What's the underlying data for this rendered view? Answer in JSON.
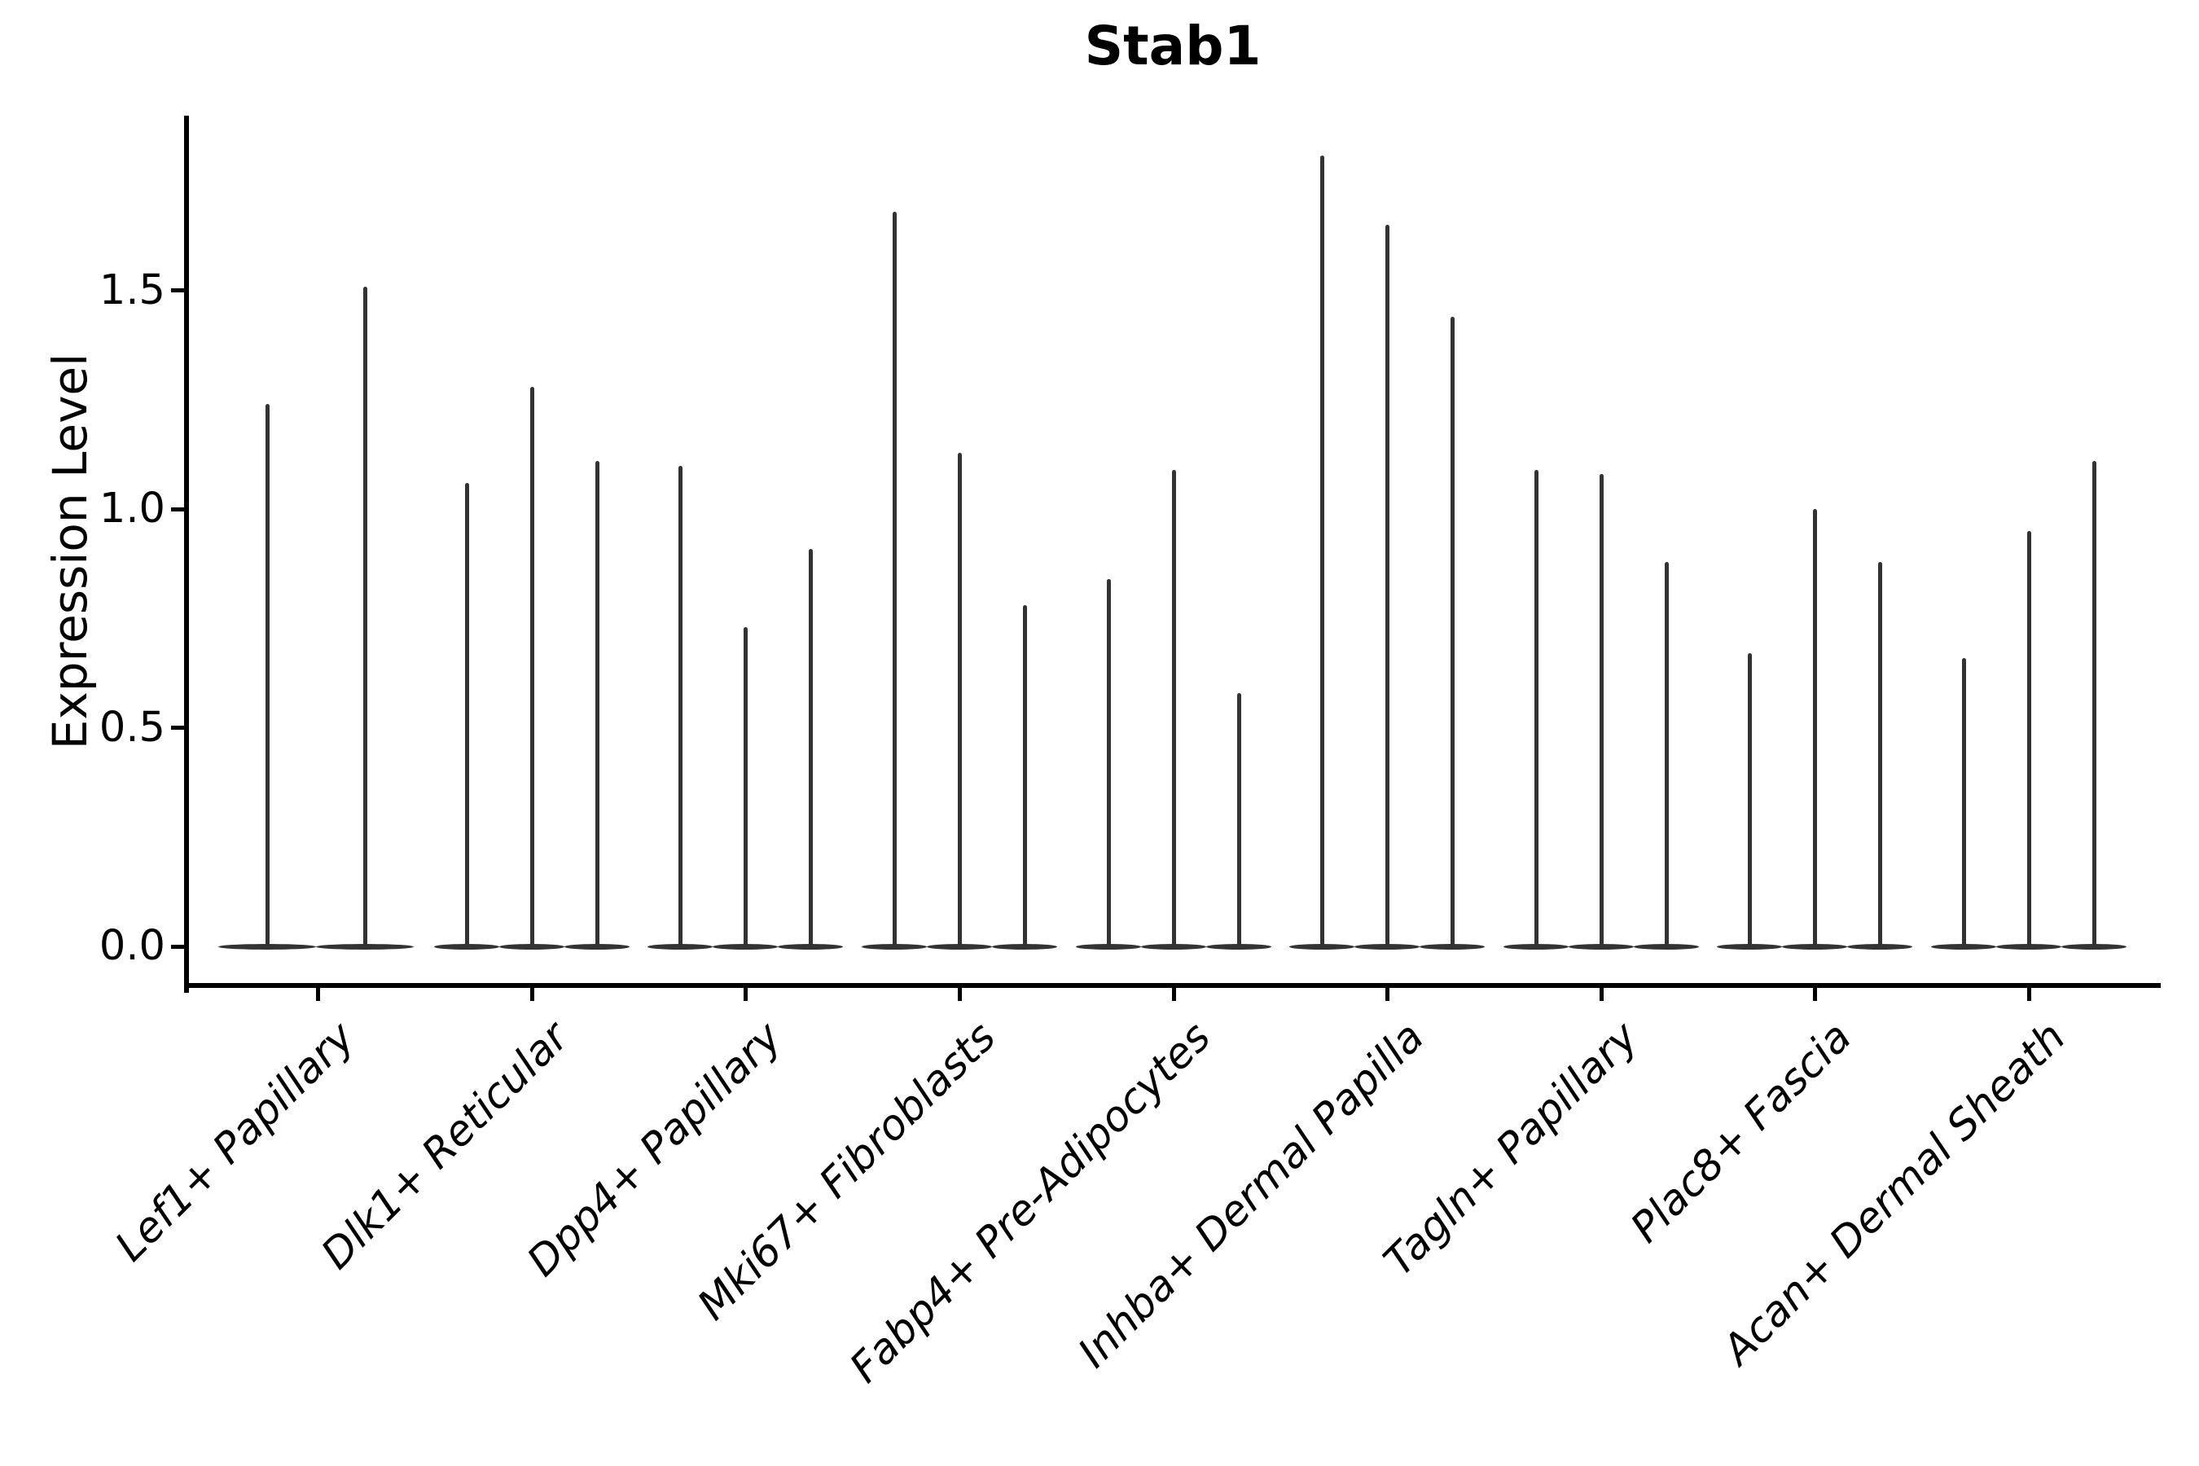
{
  "chart_data": {
    "type": "violin",
    "variant": "needle-violin-grouped",
    "title": "Stab1",
    "ylabel": "Expression Level",
    "xlabel": "",
    "grid": false,
    "legend": false,
    "ylim": [
      -0.085,
      1.9
    ],
    "yticks": [
      {
        "label": "0.0",
        "value": 0.0
      },
      {
        "label": "0.5",
        "value": 0.5
      },
      {
        "label": "1.0",
        "value": 1.0
      },
      {
        "label": "1.5",
        "value": 1.5
      }
    ],
    "categories": [
      "Lef1+ Papillary",
      "Dlk1+ Reticular",
      "Dpp4+ Papillary",
      "Mki67+ Fibroblasts",
      "Fabp4+ Pre-Adipocytes",
      "Inhba+ Dermal Papilla",
      "Tagln+ Papillary",
      "Plac8+ Fascia",
      "Acan+ Dermal Sheath"
    ],
    "groups": [
      {
        "category": "Lef1+ Papillary",
        "violin_maxima": [
          1.24,
          1.51
        ]
      },
      {
        "category": "Dlk1+ Reticular",
        "violin_maxima": [
          1.06,
          1.28,
          1.11
        ]
      },
      {
        "category": "Dpp4+ Papillary",
        "violin_maxima": [
          1.1,
          0.73,
          0.91
        ]
      },
      {
        "category": "Mki67+ Fibroblasts",
        "violin_maxima": [
          1.68,
          1.13,
          0.78
        ]
      },
      {
        "category": "Fabp4+ Pre-Adipocytes",
        "violin_maxima": [
          0.84,
          1.09,
          0.58
        ]
      },
      {
        "category": "Inhba+ Dermal Papilla",
        "violin_maxima": [
          1.81,
          1.65,
          1.44
        ]
      },
      {
        "category": "Tagln+ Papillary",
        "violin_maxima": [
          1.09,
          1.08,
          0.88
        ]
      },
      {
        "category": "Plac8+ Fascia",
        "violin_maxima": [
          0.67,
          1.0,
          0.88
        ]
      },
      {
        "category": "Acan+ Dermal Sheath",
        "violin_maxima": [
          0.66,
          0.95,
          1.11
        ]
      }
    ],
    "violin_shape_note": "Each violin is a flat lens at expression 0 with a needle-thin spike rising to its maximum value",
    "style": {
      "violin_color": "#333333",
      "axis_color": "#000000",
      "background": "#ffffff"
    }
  }
}
